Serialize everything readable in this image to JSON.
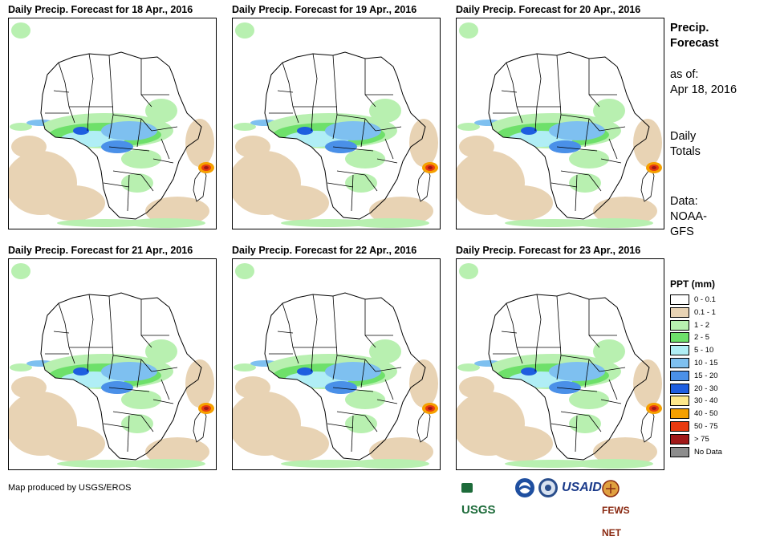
{
  "panels": [
    {
      "title": "Daily Precip. Forecast for 18 Apr., 2016"
    },
    {
      "title": "Daily Precip. Forecast for 19 Apr., 2016"
    },
    {
      "title": "Daily Precip. Forecast for 20 Apr., 2016"
    },
    {
      "title": "Daily Precip. Forecast for 21 Apr., 2016"
    },
    {
      "title": "Daily Precip. Forecast for 22 Apr., 2016"
    },
    {
      "title": "Daily Precip. Forecast for 23 Apr., 2016"
    }
  ],
  "sidebar": {
    "title_line1": "Precip.",
    "title_line2": "Forecast",
    "asof_label": "as of:",
    "asof_date": "Apr 18, 2016",
    "totals_line1": "Daily",
    "totals_line2": "Totals",
    "data_line1": "Data:",
    "data_line2": "NOAA-",
    "data_line3": "GFS"
  },
  "legend": {
    "title": "PPT (mm)",
    "items": [
      {
        "label": "0 - 0.1",
        "color": "#ffffff"
      },
      {
        "label": "0.1 - 1",
        "color": "#e8d3b4"
      },
      {
        "label": "1 - 2",
        "color": "#b8f0b0"
      },
      {
        "label": "2 - 5",
        "color": "#6ee06a"
      },
      {
        "label": "5 - 10",
        "color": "#b0eef5"
      },
      {
        "label": "10 - 15",
        "color": "#7ec0f0"
      },
      {
        "label": "15 - 20",
        "color": "#4a90e8"
      },
      {
        "label": "20 - 30",
        "color": "#1e5ee0"
      },
      {
        "label": "30 - 40",
        "color": "#fde88a"
      },
      {
        "label": "40 - 50",
        "color": "#f5a000"
      },
      {
        "label": "50 - 75",
        "color": "#e83a10"
      },
      {
        "label": "> 75",
        "color": "#a01818"
      },
      {
        "label": "No Data",
        "color": "#8c8c8c"
      }
    ]
  },
  "footer": {
    "credit": "Map produced by USGS/EROS",
    "logo_usgs": "USGS",
    "logo_usaid": "USAID",
    "logo_fewsnet": "FEWS NET"
  }
}
